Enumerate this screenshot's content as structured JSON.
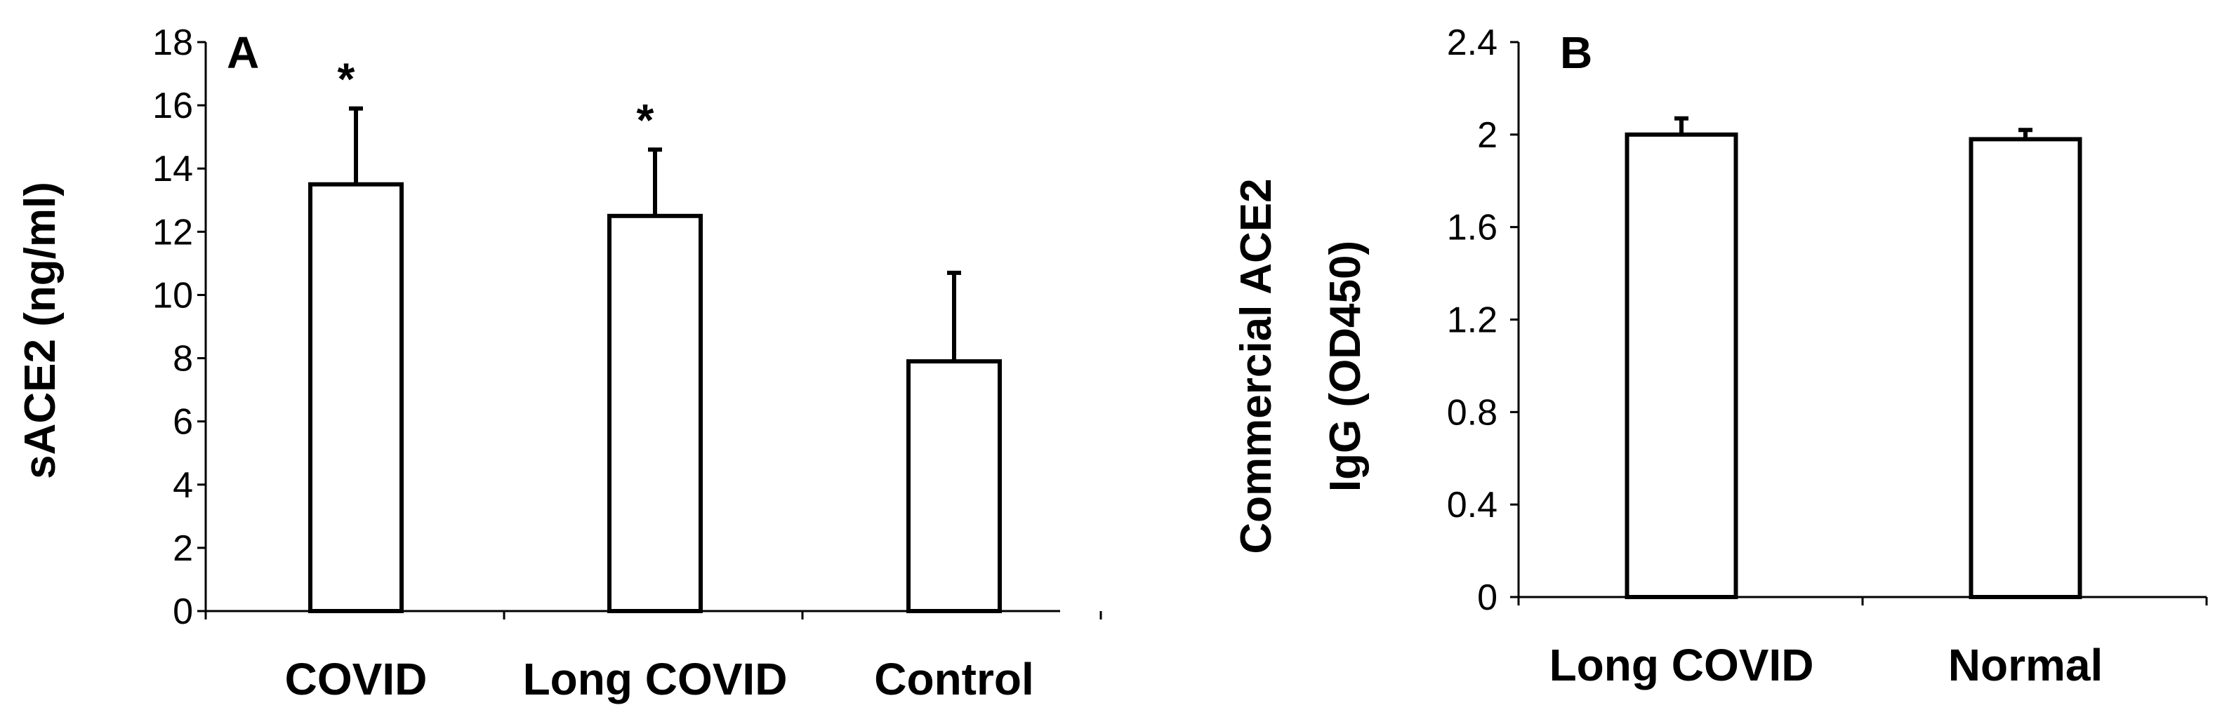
{
  "chart_data": [
    {
      "type": "bar",
      "panel_label": "A",
      "ylabel": "sACE2 (ng/ml)",
      "xlabel": "",
      "categories": [
        "COVID",
        "Long COVID",
        "Control"
      ],
      "values": [
        13.5,
        12.5,
        7.9
      ],
      "errors": [
        2.4,
        2.1,
        2.8
      ],
      "annotations": [
        "*",
        "*",
        ""
      ],
      "ylim": [
        0,
        18
      ],
      "yticks": [
        "0",
        "2",
        "4",
        "6",
        "8",
        "10",
        "12",
        "14",
        "16",
        "18"
      ],
      "grid": false
    },
    {
      "type": "bar",
      "panel_label": "B",
      "ylabel_lines": [
        "Commercial ACE2",
        "IgG (OD450)"
      ],
      "xlabel": "",
      "categories": [
        "Long COVID",
        "Normal"
      ],
      "values": [
        2.0,
        1.98
      ],
      "errors": [
        0.07,
        0.04
      ],
      "ylim": [
        0,
        2.4
      ],
      "yticks": [
        "0",
        "0.4",
        "0.8",
        "1.2",
        "1.6",
        "2",
        "2.4"
      ],
      "grid": false
    }
  ]
}
